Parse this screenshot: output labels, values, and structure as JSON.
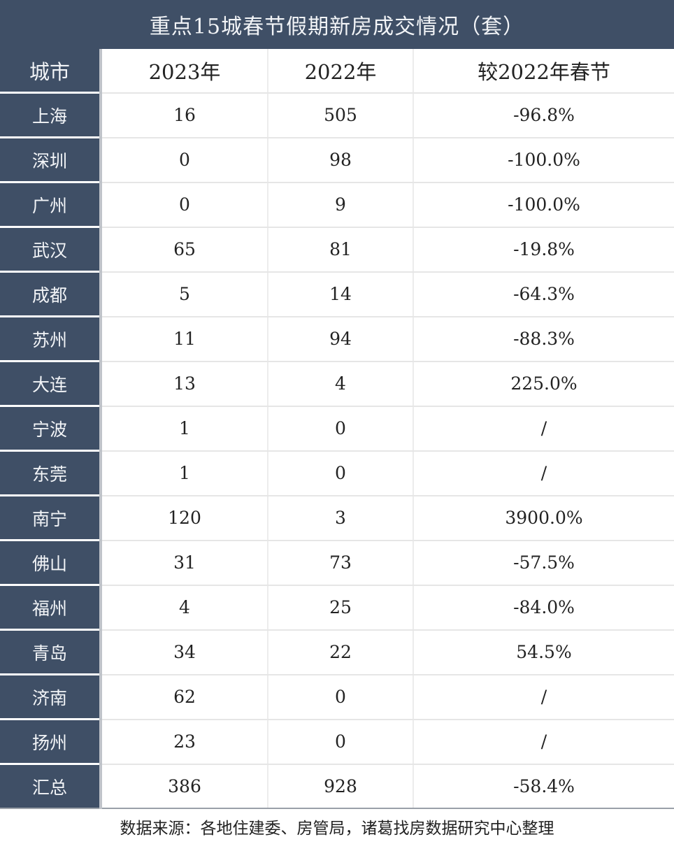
{
  "title": "重点15城春节假期新房成交情况（套）",
  "headers": [
    "城市",
    "2023年",
    "2022年",
    "较2022年春节"
  ],
  "rows": [
    [
      "上海",
      "16",
      "505",
      "-96.8%"
    ],
    [
      "深圳",
      "0",
      "98",
      "-100.0%"
    ],
    [
      "广州",
      "0",
      "9",
      "-100.0%"
    ],
    [
      "武汉",
      "65",
      "81",
      "-19.8%"
    ],
    [
      "成都",
      "5",
      "14",
      "-64.3%"
    ],
    [
      "苏州",
      "11",
      "94",
      "-88.3%"
    ],
    [
      "大连",
      "13",
      "4",
      "225.0%"
    ],
    [
      "宁波",
      "1",
      "0",
      "/"
    ],
    [
      "东莞",
      "1",
      "0",
      "/"
    ],
    [
      "南宁",
      "120",
      "3",
      "3900.0%"
    ],
    [
      "佛山",
      "31",
      "73",
      "-57.5%"
    ],
    [
      "福州",
      "4",
      "25",
      "-84.0%"
    ],
    [
      "青岛",
      "34",
      "22",
      "54.5%"
    ],
    [
      "济南",
      "62",
      "0",
      "/"
    ],
    [
      "扬州",
      "23",
      "0",
      "/"
    ],
    [
      "汇总",
      "386",
      "928",
      "-58.4%"
    ]
  ],
  "footer": "数据来源：各地住建委、房管局，诸葛找房数据研究中心整理",
  "colors": {
    "header_bg": "#3f4f66",
    "header_text": "#f2f4f7"
  }
}
